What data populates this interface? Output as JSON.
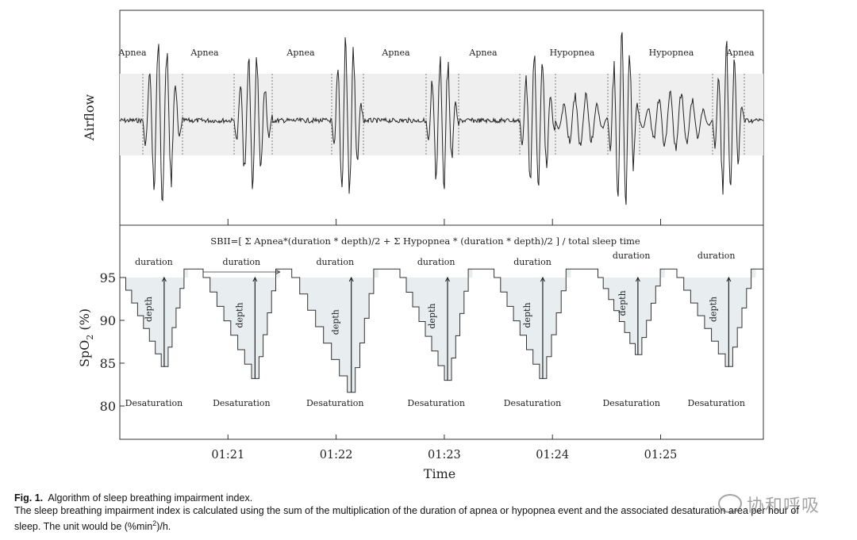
{
  "chart_data": [
    {
      "type": "line",
      "title": "",
      "ylabel": "Airflow",
      "event_labels": [
        "Apnea",
        "Apnea",
        "Apnea",
        "Apnea",
        "Apnea",
        "Hypopnea",
        "Hypopnea",
        "Apnea"
      ]
    },
    {
      "type": "line",
      "title": "SBII=[ Σ Apnea*(duration * depth)/2 + Σ Hypopnea * (duration * depth)/2 ] / total sleep time",
      "xlabel": "Time",
      "ylabel_main": "SpO",
      "ylabel_sub": "2",
      "ylabel_unit": " (%)",
      "x_ticks": [
        "01:21",
        "01:22",
        "01:23",
        "01:24",
        "01:25"
      ],
      "x_tick_minutes": [
        81,
        82,
        83,
        84,
        85
      ],
      "xlim_minutes": [
        80.0,
        85.95
      ],
      "y_ticks": [
        80,
        85,
        90,
        95
      ],
      "ylim": [
        78,
        97
      ],
      "baseline": 96,
      "events": [
        {
          "start": 80.0,
          "end": 80.63,
          "nadir": 84.6,
          "nadir_x": 80.41
        },
        {
          "start": 80.77,
          "end": 81.48,
          "nadir": 83.2,
          "nadir_x": 81.25
        },
        {
          "start": 81.59,
          "end": 82.39,
          "nadir": 81.6,
          "nadir_x": 82.14
        },
        {
          "start": 82.59,
          "end": 83.26,
          "nadir": 83.0,
          "nadir_x": 83.03
        },
        {
          "start": 83.46,
          "end": 84.17,
          "nadir": 83.2,
          "nadir_x": 83.91
        },
        {
          "start": 84.42,
          "end": 85.04,
          "nadir": 86.0,
          "nadir_x": 84.79
        },
        {
          "start": 85.15,
          "end": 85.88,
          "nadir": 84.6,
          "nadir_x": 85.63
        }
      ],
      "duration_label": "duration",
      "depth_label": "depth",
      "desaturation_label": "Desaturation"
    }
  ],
  "caption": {
    "figlabel": "Fig. 1.",
    "title": "Algorithm of sleep breathing impairment index.",
    "body_line1": "The sleep breathing impairment index is calculated using the sum of the multiplication of the duration of apnea or hypopnea event and the associated desaturation area per hour of",
    "body_line2_pre": "sleep. The unit would be (%min",
    "body_line2_sup": "2",
    "body_line2_post": ")/h."
  },
  "watermark": {
    "text": "协和呼吸"
  }
}
